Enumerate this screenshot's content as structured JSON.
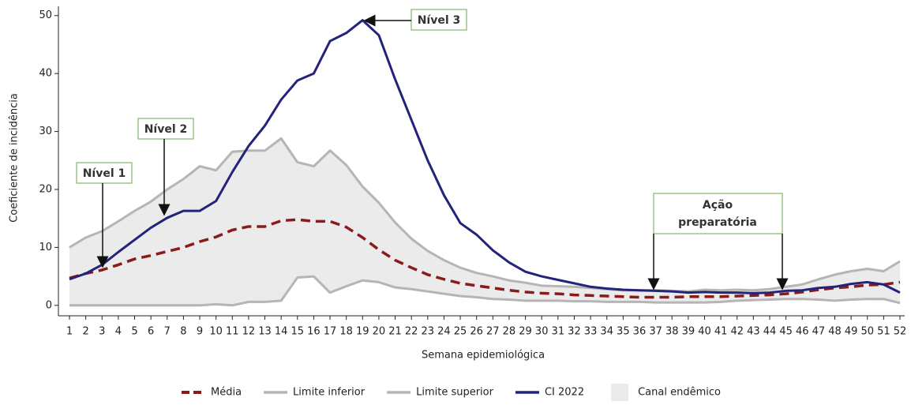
{
  "chart_data": {
    "type": "line",
    "x_label": "Semana epidemiológica",
    "y_label": "Coeficiente de incidência",
    "categories": [
      "1",
      "2",
      "3",
      "4",
      "5",
      "6",
      "7",
      "8",
      "9",
      "10",
      "11",
      "12",
      "13",
      "14",
      "15",
      "16",
      "17",
      "18",
      "19",
      "20",
      "21",
      "22",
      "23",
      "24",
      "25",
      "26",
      "27",
      "28",
      "29",
      "30",
      "31",
      "32",
      "33",
      "34",
      "35",
      "36",
      "37",
      "38",
      "39",
      "40",
      "41",
      "42",
      "43",
      "44",
      "45",
      "46",
      "47",
      "48",
      "49",
      "50",
      "51",
      "52"
    ],
    "ylim": [
      -1.8,
      51.6
    ],
    "yticks": [
      0,
      10,
      20,
      30,
      40,
      50
    ],
    "series": [
      {
        "name": "Média",
        "color": "#8b1a1a",
        "dashed": true,
        "values": [
          4.7,
          5.5,
          6.1,
          7,
          8,
          8.6,
          9.3,
          10,
          11,
          11.8,
          13,
          13.6,
          13.6,
          14.6,
          14.8,
          14.5,
          14.5,
          13.5,
          11.7,
          9.6,
          7.8,
          6.5,
          5.3,
          4.5,
          3.8,
          3.4,
          3,
          2.6,
          2.3,
          2.1,
          2,
          1.8,
          1.7,
          1.6,
          1.5,
          1.4,
          1.4,
          1.4,
          1.5,
          1.5,
          1.5,
          1.6,
          1.7,
          1.8,
          2,
          2.3,
          2.7,
          3,
          3.2,
          3.5,
          3.6,
          4
        ]
      },
      {
        "name": "Limite inferior",
        "color": "#b5b5b5",
        "values": [
          0,
          0,
          0,
          0,
          0,
          0,
          0,
          0,
          0,
          0.2,
          0,
          0.6,
          0.6,
          0.8,
          4.8,
          5,
          2.2,
          3.3,
          4.3,
          4,
          3.1,
          2.8,
          2.4,
          2,
          1.6,
          1.4,
          1.1,
          1,
          0.8,
          0.8,
          0.8,
          0.7,
          0.7,
          0.6,
          0.6,
          0.6,
          0.5,
          0.5,
          0.5,
          0.5,
          0.6,
          0.8,
          0.9,
          1,
          1.1,
          1.1,
          1,
          0.8,
          1,
          1.1,
          1.1,
          0.4
        ]
      },
      {
        "name": "Limite superior",
        "color": "#b5b5b5",
        "values": [
          10,
          11.7,
          12.8,
          14.5,
          16.3,
          17.9,
          20,
          21.8,
          24,
          23.3,
          26.5,
          26.7,
          26.7,
          28.8,
          24.7,
          24,
          26.7,
          24.2,
          20.5,
          17.7,
          14.3,
          11.5,
          9.4,
          7.8,
          6.5,
          5.6,
          5,
          4.3,
          3.9,
          3.4,
          3.3,
          3.2,
          3,
          2.8,
          2.6,
          2.6,
          2.6,
          2.5,
          2.4,
          2.7,
          2.6,
          2.7,
          2.6,
          2.8,
          3.2,
          3.6,
          4.5,
          5.3,
          5.9,
          6.3,
          5.9,
          7.6
        ]
      },
      {
        "name": "CI 2022",
        "color": "#23237a",
        "values": [
          4.5,
          5.5,
          7,
          9.2,
          11.3,
          13.4,
          15.1,
          16.3,
          16.3,
          18,
          23,
          27.5,
          31,
          35.5,
          38.8,
          40,
          45.6,
          47,
          49.2,
          46.6,
          39,
          32,
          25,
          19,
          14.2,
          12.2,
          9.5,
          7.4,
          5.8,
          5,
          4.4,
          3.8,
          3.2,
          2.9,
          2.7,
          2.6,
          2.5,
          2.4,
          2.2,
          2.3,
          2.2,
          2.2,
          2.1,
          2.2,
          2.5,
          2.6,
          3,
          3.2,
          3.7,
          4,
          3.6,
          2.2
        ]
      }
    ],
    "band": {
      "name": "Canal endêmico",
      "color": "#ebebeb"
    },
    "annotations": [
      "Nível 1",
      "Nível 2",
      "Nível 3",
      "Ação",
      "preparatória"
    ]
  }
}
